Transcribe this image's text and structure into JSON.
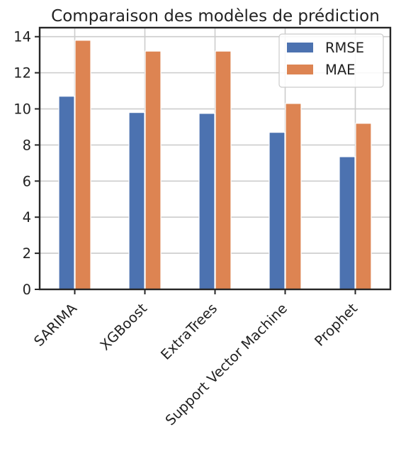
{
  "chart_data": {
    "type": "bar",
    "title": "Comparaison des modèles de prédiction",
    "xlabel": "",
    "ylabel": "",
    "categories": [
      "SARIMA",
      "XGBoost",
      "ExtraTrees",
      "Support Vector Machine",
      "Prophet"
    ],
    "series": [
      {
        "name": "RMSE",
        "color": "#4c72b0",
        "values": [
          10.7,
          9.8,
          9.75,
          8.7,
          7.35
        ]
      },
      {
        "name": "MAE",
        "color": "#dd8452",
        "values": [
          13.8,
          13.2,
          13.2,
          10.3,
          9.2
        ]
      }
    ],
    "ylim": [
      0,
      14.5
    ],
    "yticks": [
      0,
      2,
      4,
      6,
      8,
      10,
      12,
      14
    ],
    "grid": true,
    "legend_position": "top-right"
  }
}
